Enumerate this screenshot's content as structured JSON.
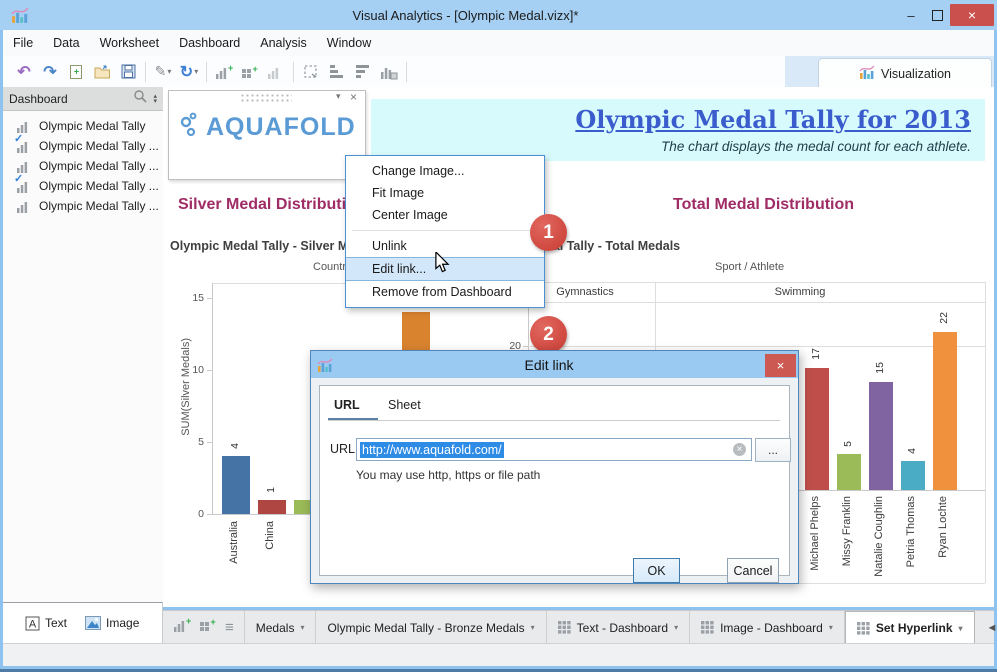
{
  "window": {
    "title": "Visual Analytics - [Olympic Medal.vizx]*"
  },
  "menubar": {
    "items": [
      "File",
      "Data",
      "Worksheet",
      "Dashboard",
      "Analysis",
      "Window"
    ]
  },
  "toolbar": {
    "visualization_label": "Visualization",
    "icons": [
      "undo",
      "redo",
      "new-file",
      "open-file",
      "save",
      "format",
      "refresh",
      "new-worksheet",
      "new-dashboard",
      "chart",
      "select-region",
      "align-bottom",
      "align-top",
      "chart-export"
    ]
  },
  "sidebar": {
    "header": "Dashboard",
    "items": [
      {
        "label": "Olympic Medal Tally",
        "checked": false
      },
      {
        "label": "Olympic Medal Tally ...",
        "checked": true
      },
      {
        "label": "Olympic Medal Tally ...",
        "checked": false
      },
      {
        "label": "Olympic Medal Tally ...",
        "checked": true
      },
      {
        "label": "Olympic Medal Tally ...",
        "checked": false
      }
    ]
  },
  "logo": {
    "text": "AQUAFOLD"
  },
  "banner": {
    "title": "Olympic Medal Tally for 2013",
    "subtitle": "The chart displays the medal count for each athlete."
  },
  "context_menu": {
    "items": [
      "Change Image...",
      "Fit Image",
      "Center Image",
      "Unlink",
      "Edit link...",
      "Remove from Dashboard"
    ],
    "highlighted_index": 4,
    "separator_after_index": 2
  },
  "badges": {
    "step1": "1",
    "step2": "2"
  },
  "dialog": {
    "title": "Edit link",
    "tabs": [
      "URL",
      "Sheet"
    ],
    "active_tab": "URL",
    "url_label": "URL:",
    "url_value": "http://www.aquafold.com/",
    "browse_label": "...",
    "hint": "You may use http, https or file path",
    "ok_label": "OK",
    "cancel_label": "Cancel"
  },
  "chart_data": [
    {
      "type": "bar",
      "title": "Silver Medal Distribution",
      "subtitle": "Olympic Medal Tally - Silver Medals",
      "xlabel": "Country",
      "ylabel": "SUM(Silver Medals)",
      "yticks": [
        0,
        5,
        10,
        15
      ],
      "ylim": [
        0,
        15
      ],
      "bars": [
        {
          "category": "Australia",
          "value": 4,
          "value_label": "4",
          "color": "#4573a6"
        },
        {
          "category": "China",
          "value": 1,
          "value_label": "1",
          "color": "#b04642"
        },
        {
          "category": "",
          "value": 1,
          "value_label": "",
          "color": "#9bbb59"
        },
        {
          "category": "",
          "value": 14,
          "value_label": "14",
          "color": "#d9832f"
        }
      ],
      "note": "partially covered by context menu and Edit link dialog"
    },
    {
      "type": "bar",
      "title": "Total Medal Distribution",
      "subtitle": "Olympic Medal Tally - Total Medals",
      "xlabel": "Sport / Athlete",
      "groups": [
        "Gymnastics",
        "Swimming"
      ],
      "yticks_visible": [
        20
      ],
      "bars": [
        {
          "category": "Michael Phelps",
          "value": 17,
          "value_label": "17",
          "color": "#bf4e4b"
        },
        {
          "category": "Missy Franklin",
          "value": 5,
          "value_label": "5",
          "color": "#9bbb59"
        },
        {
          "category": "Natalie Coughlin",
          "value": 15,
          "value_label": "15",
          "color": "#8064a2"
        },
        {
          "category": "Petria Thomas",
          "value": 4,
          "value_label": "4",
          "color": "#4bacc6"
        },
        {
          "category": "Ryan Lochte",
          "value": 22,
          "value_label": "22",
          "color": "#f0913e"
        }
      ],
      "note": "Gymnastics group hidden behind Edit link dialog"
    }
  ],
  "bottom": {
    "left_buttons": [
      "Text",
      "Image"
    ],
    "tabs": [
      {
        "label": "Medals",
        "grid_icon": false
      },
      {
        "label": "Olympic Medal Tally - Bronze Medals",
        "grid_icon": false
      },
      {
        "label": "Text - Dashboard",
        "grid_icon": true
      },
      {
        "label": "Image - Dashboard",
        "grid_icon": true
      },
      {
        "label": "Set Hyperlink",
        "grid_icon": true
      }
    ],
    "active_tab": "Set Hyperlink"
  }
}
